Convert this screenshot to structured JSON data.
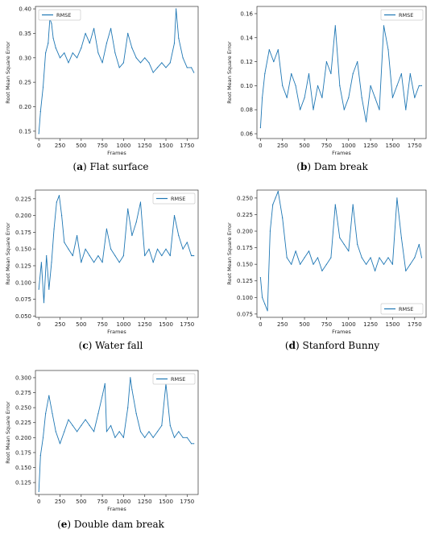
{
  "colors": {
    "line": "#1f77b4",
    "axis": "#333333",
    "legend_border": "#cccccc"
  },
  "captions": [
    {
      "letter": "a",
      "text": "Flat surface"
    },
    {
      "letter": "b",
      "text": "Dam break"
    },
    {
      "letter": "c",
      "text": "Water fall"
    },
    {
      "letter": "d",
      "text": "Stanford Bunny"
    },
    {
      "letter": "e",
      "text": "Double dam break"
    }
  ],
  "chart_data": [
    {
      "type": "line",
      "xlabel": "Frames",
      "ylabel": "Root Mean Square Error",
      "xlim": [
        -40,
        1880
      ],
      "ylim": [
        0.135,
        0.405
      ],
      "xticks": [
        0,
        250,
        500,
        750,
        1000,
        1250,
        1500,
        1750
      ],
      "yticks": [
        0.15,
        0.2,
        0.25,
        0.3,
        0.35,
        0.4
      ],
      "ytick_labels": [
        "0.15",
        "0.20",
        "0.25",
        "0.30",
        "0.35",
        "0.40"
      ],
      "legend": "upper-left",
      "series": [
        {
          "name": "RMSE",
          "x": [
            0,
            20,
            50,
            80,
            110,
            130,
            150,
            170,
            200,
            250,
            300,
            350,
            400,
            450,
            500,
            550,
            600,
            650,
            700,
            750,
            800,
            850,
            900,
            950,
            1000,
            1050,
            1100,
            1150,
            1200,
            1250,
            1300,
            1350,
            1400,
            1450,
            1500,
            1550,
            1600,
            1620,
            1650,
            1700,
            1750,
            1800,
            1830
          ],
          "y": [
            0.145,
            0.19,
            0.24,
            0.31,
            0.33,
            0.38,
            0.37,
            0.34,
            0.32,
            0.3,
            0.31,
            0.29,
            0.31,
            0.3,
            0.32,
            0.35,
            0.33,
            0.36,
            0.31,
            0.29,
            0.33,
            0.36,
            0.31,
            0.28,
            0.29,
            0.35,
            0.32,
            0.3,
            0.29,
            0.3,
            0.29,
            0.27,
            0.28,
            0.29,
            0.28,
            0.29,
            0.33,
            0.4,
            0.34,
            0.3,
            0.28,
            0.28,
            0.27
          ]
        }
      ]
    },
    {
      "type": "line",
      "xlabel": "Frames",
      "ylabel": "Root Mean Square Error",
      "xlim": [
        -40,
        1880
      ],
      "ylim": [
        0.056,
        0.166
      ],
      "xticks": [
        0,
        250,
        500,
        750,
        1000,
        1250,
        1500,
        1750
      ],
      "yticks": [
        0.06,
        0.08,
        0.1,
        0.12,
        0.14,
        0.16
      ],
      "ytick_labels": [
        "0.06",
        "0.08",
        "0.10",
        "0.12",
        "0.14",
        "0.16"
      ],
      "legend": "upper-right",
      "series": [
        {
          "name": "RMSE",
          "x": [
            0,
            20,
            50,
            100,
            150,
            200,
            250,
            300,
            350,
            400,
            450,
            500,
            550,
            600,
            650,
            700,
            750,
            800,
            850,
            900,
            950,
            1000,
            1050,
            1100,
            1150,
            1200,
            1250,
            1300,
            1350,
            1400,
            1450,
            1500,
            1550,
            1600,
            1650,
            1700,
            1750,
            1800,
            1830
          ],
          "y": [
            0.065,
            0.09,
            0.11,
            0.13,
            0.12,
            0.13,
            0.1,
            0.09,
            0.11,
            0.1,
            0.08,
            0.09,
            0.11,
            0.08,
            0.1,
            0.09,
            0.12,
            0.11,
            0.15,
            0.1,
            0.08,
            0.09,
            0.11,
            0.12,
            0.09,
            0.07,
            0.1,
            0.09,
            0.08,
            0.15,
            0.13,
            0.09,
            0.1,
            0.11,
            0.08,
            0.11,
            0.09,
            0.1,
            0.1
          ]
        }
      ]
    },
    {
      "type": "line",
      "xlabel": "Frames",
      "ylabel": "Root Mean Square Error",
      "xlim": [
        -40,
        1880
      ],
      "ylim": [
        0.048,
        0.238
      ],
      "xticks": [
        0,
        250,
        500,
        750,
        1000,
        1250,
        1500,
        1750
      ],
      "yticks": [
        0.05,
        0.075,
        0.1,
        0.125,
        0.15,
        0.175,
        0.2,
        0.225
      ],
      "ytick_labels": [
        "0.050",
        "0.075",
        "0.100",
        "0.125",
        "0.150",
        "0.175",
        "0.200",
        "0.225"
      ],
      "legend": "upper-right",
      "series": [
        {
          "name": "RMSE",
          "x": [
            0,
            30,
            60,
            90,
            120,
            150,
            180,
            210,
            240,
            270,
            300,
            350,
            400,
            450,
            500,
            550,
            600,
            650,
            700,
            750,
            800,
            850,
            900,
            950,
            1000,
            1050,
            1100,
            1150,
            1200,
            1250,
            1300,
            1350,
            1400,
            1450,
            1500,
            1550,
            1600,
            1650,
            1700,
            1750,
            1800,
            1830
          ],
          "y": [
            0.09,
            0.13,
            0.07,
            0.14,
            0.09,
            0.13,
            0.18,
            0.22,
            0.23,
            0.2,
            0.16,
            0.15,
            0.14,
            0.17,
            0.13,
            0.15,
            0.14,
            0.13,
            0.14,
            0.13,
            0.18,
            0.15,
            0.14,
            0.13,
            0.14,
            0.21,
            0.17,
            0.19,
            0.22,
            0.14,
            0.15,
            0.13,
            0.15,
            0.14,
            0.15,
            0.14,
            0.2,
            0.17,
            0.15,
            0.16,
            0.14,
            0.14
          ]
        }
      ]
    },
    {
      "type": "line",
      "xlabel": "Frames",
      "ylabel": "Root Mean Square Error",
      "xlim": [
        -40,
        1880
      ],
      "ylim": [
        0.07,
        0.262
      ],
      "xticks": [
        0,
        250,
        500,
        750,
        1000,
        1250,
        1500,
        1750
      ],
      "yticks": [
        0.075,
        0.1,
        0.125,
        0.15,
        0.175,
        0.2,
        0.225,
        0.25
      ],
      "ytick_labels": [
        "0.075",
        "0.100",
        "0.125",
        "0.150",
        "0.175",
        "0.200",
        "0.225",
        "0.250"
      ],
      "legend": "lower-right",
      "series": [
        {
          "name": "RMSE",
          "x": [
            0,
            20,
            50,
            80,
            110,
            140,
            170,
            200,
            250,
            300,
            350,
            400,
            450,
            500,
            550,
            600,
            650,
            700,
            750,
            800,
            850,
            900,
            950,
            1000,
            1050,
            1100,
            1150,
            1200,
            1250,
            1300,
            1350,
            1400,
            1450,
            1500,
            1550,
            1600,
            1650,
            1700,
            1750,
            1800,
            1830
          ],
          "y": [
            0.13,
            0.1,
            0.09,
            0.08,
            0.2,
            0.24,
            0.25,
            0.26,
            0.22,
            0.16,
            0.15,
            0.17,
            0.15,
            0.16,
            0.17,
            0.15,
            0.16,
            0.14,
            0.15,
            0.16,
            0.24,
            0.19,
            0.18,
            0.17,
            0.24,
            0.18,
            0.16,
            0.15,
            0.16,
            0.14,
            0.16,
            0.15,
            0.16,
            0.15,
            0.25,
            0.19,
            0.14,
            0.15,
            0.16,
            0.18,
            0.16
          ]
        }
      ]
    },
    {
      "type": "line",
      "xlabel": "Frames",
      "ylabel": "Root Mean Square Error",
      "xlim": [
        -40,
        1880
      ],
      "ylim": [
        0.105,
        0.312
      ],
      "xticks": [
        0,
        250,
        500,
        750,
        1000,
        1250,
        1500,
        1750
      ],
      "yticks": [
        0.125,
        0.15,
        0.175,
        0.2,
        0.225,
        0.25,
        0.275,
        0.3
      ],
      "ytick_labels": [
        "0.125",
        "0.150",
        "0.175",
        "0.200",
        "0.225",
        "0.250",
        "0.275",
        "0.300"
      ],
      "legend": "upper-right",
      "series": [
        {
          "name": "RMSE",
          "x": [
            0,
            20,
            50,
            80,
            120,
            160,
            200,
            250,
            300,
            350,
            400,
            450,
            500,
            550,
            600,
            650,
            700,
            750,
            780,
            800,
            850,
            900,
            950,
            1000,
            1050,
            1080,
            1100,
            1150,
            1200,
            1250,
            1300,
            1350,
            1400,
            1450,
            1500,
            1550,
            1600,
            1650,
            1700,
            1750,
            1800,
            1830
          ],
          "y": [
            0.11,
            0.17,
            0.2,
            0.24,
            0.27,
            0.24,
            0.21,
            0.19,
            0.21,
            0.23,
            0.22,
            0.21,
            0.22,
            0.23,
            0.22,
            0.21,
            0.24,
            0.27,
            0.29,
            0.21,
            0.22,
            0.2,
            0.21,
            0.2,
            0.25,
            0.3,
            0.28,
            0.24,
            0.21,
            0.2,
            0.21,
            0.2,
            0.21,
            0.22,
            0.29,
            0.22,
            0.2,
            0.21,
            0.2,
            0.2,
            0.19,
            0.19
          ]
        }
      ]
    }
  ]
}
